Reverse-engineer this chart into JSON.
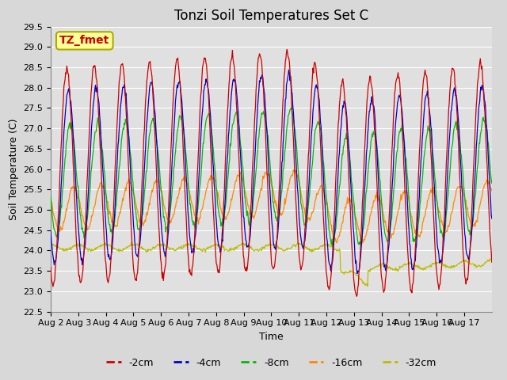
{
  "title": "Tonzi Soil Temperatures Set C",
  "xlabel": "Time",
  "ylabel": "Soil Temperature (C)",
  "ylim": [
    22.5,
    29.5
  ],
  "series_labels": [
    "-2cm",
    "-4cm",
    "-8cm",
    "-16cm",
    "-32cm"
  ],
  "series_colors": [
    "#cc0000",
    "#0000cc",
    "#00bb00",
    "#ff8800",
    "#bbbb00"
  ],
  "annotation_text": "TZ_fmet",
  "annotation_bg": "#ffff99",
  "annotation_border": "#aaaa00",
  "annotation_textcolor": "#cc0000",
  "fig_facecolor": "#d8d8d8",
  "axes_facecolor": "#e0e0e0",
  "title_fontsize": 12,
  "axis_label_fontsize": 9,
  "tick_fontsize": 8,
  "legend_fontsize": 9,
  "n_days": 16,
  "x_tick_labels": [
    "Aug 2",
    "Aug 3",
    "Aug 4",
    "Aug 5",
    "Aug 6",
    "Aug 7",
    "Aug 8",
    "Aug 9",
    "Aug 10",
    "Aug 11",
    "Aug 12",
    "Aug 13",
    "Aug 14",
    "Aug 15",
    "Aug 16",
    "Aug 17"
  ],
  "yticks": [
    22.5,
    23.0,
    23.5,
    24.0,
    24.5,
    25.0,
    25.5,
    26.0,
    26.5,
    27.0,
    27.5,
    28.0,
    28.5,
    29.0,
    29.5
  ]
}
